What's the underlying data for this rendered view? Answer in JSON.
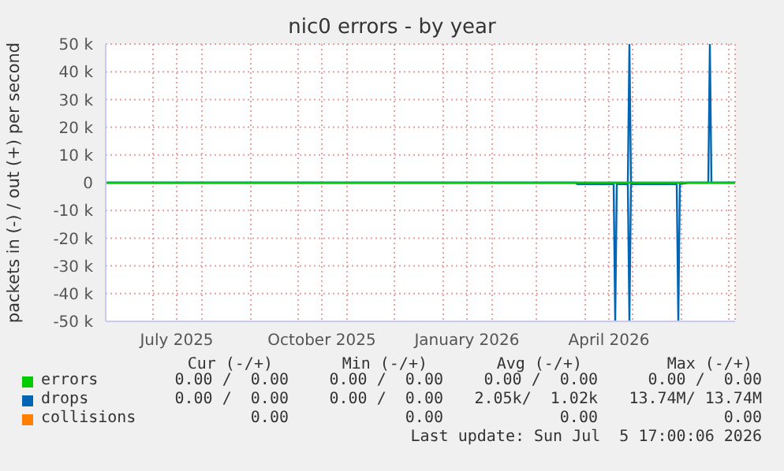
{
  "chart_data": {
    "type": "line",
    "title": "nic0 errors - by year",
    "ylabel": "packets in (-) / out (+) per second",
    "xlim": [
      "2025-06-01",
      "2026-07-05"
    ],
    "xticks": [
      {
        "value": "2025-07-01",
        "label": null
      },
      {
        "value": "2025-07-16",
        "label": "July 2025"
      },
      {
        "value": "2025-08-01",
        "label": null
      },
      {
        "value": "2025-09-01",
        "label": null
      },
      {
        "value": "2025-10-01",
        "label": null
      },
      {
        "value": "2025-10-16",
        "label": "October 2025"
      },
      {
        "value": "2025-11-01",
        "label": null
      },
      {
        "value": "2025-12-01",
        "label": null
      },
      {
        "value": "2026-01-01",
        "label": null
      },
      {
        "value": "2026-01-16",
        "label": "January 2026"
      },
      {
        "value": "2026-02-01",
        "label": null
      },
      {
        "value": "2026-03-01",
        "label": null
      },
      {
        "value": "2026-04-01",
        "label": null
      },
      {
        "value": "2026-04-16",
        "label": "April 2026"
      },
      {
        "value": "2026-05-01",
        "label": null
      },
      {
        "value": "2026-06-01",
        "label": null
      },
      {
        "value": "2026-07-01",
        "label": null
      }
    ],
    "ylim": [
      -50000,
      50000
    ],
    "yticks": [
      {
        "value": -50000,
        "label": "-50 k"
      },
      {
        "value": -40000,
        "label": "-40 k"
      },
      {
        "value": -30000,
        "label": "-30 k"
      },
      {
        "value": -20000,
        "label": "-20 k"
      },
      {
        "value": -10000,
        "label": "-10 k"
      },
      0,
      {
        "value": 10000,
        "label": "10 k"
      },
      {
        "value": 20000,
        "label": "20 k"
      },
      {
        "value": 30000,
        "label": "30 k"
      },
      {
        "value": 40000,
        "label": "40 k"
      },
      {
        "value": 50000,
        "label": "50 k"
      }
    ],
    "grid": true,
    "legend": "bottom",
    "marker": "none",
    "line_style": "solid",
    "series": [
      {
        "name": "collisions",
        "color": "#ff8000"
      },
      {
        "name": "drops",
        "color": "#0066b3",
        "x": [
          "2025-06-01",
          "2026-03-26",
          "2026-03-27",
          "2026-04-19",
          "2026-04-20",
          "2026-04-21",
          "2026-04-28",
          "2026-04-29",
          "2026-04-30",
          "2026-05-29",
          "2026-05-30",
          "2026-05-31",
          "2026-06-05",
          "2026-07-05"
        ],
        "values": [
          0,
          0,
          -500,
          -500,
          -50000,
          -500,
          -500,
          -50000,
          -500,
          -500,
          -50000,
          -500,
          0,
          0
        ]
      },
      {
        "color": "#0066b3",
        "x": [
          "2025-06-01",
          "2026-04-28",
          "2026-04-29",
          "2026-04-30",
          "2026-06-18",
          "2026-06-19",
          "2026-06-20",
          "2026-07-05"
        ],
        "values": [
          0,
          0,
          50000,
          0,
          0,
          50000,
          0,
          0
        ]
      },
      {
        "name": "errors",
        "color": "#00cc00",
        "x": [
          "2025-06-01",
          "2026-07-05"
        ],
        "values": [
          0,
          0
        ]
      }
    ],
    "annotations": [
      "Cur (-/+)",
      "Min (-/+)",
      "Avg (-/+)",
      "Max (-/+)",
      "0.00 /  0.00",
      "0.00 /  0.00",
      "0.00 /  0.00",
      "0.00 /  0.00",
      "0.00 /  0.00",
      "0.00 /  0.00",
      "2.05k/  1.02k",
      "13.74M/ 13.74M",
      "0.00",
      "0.00",
      "0.00",
      "0.00",
      "Last update: Sun Jul  5 17:00:06 2026"
    ]
  }
}
